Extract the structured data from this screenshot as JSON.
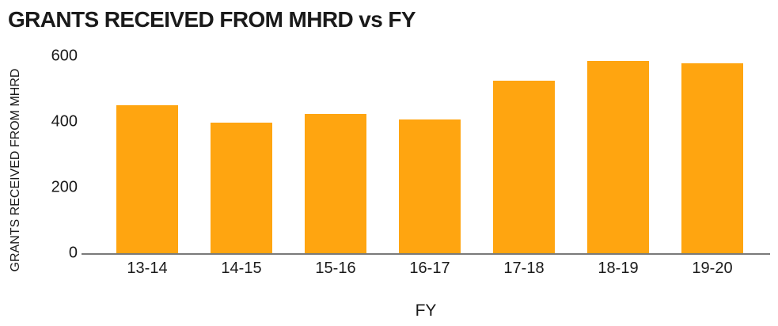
{
  "chart_data": {
    "type": "bar",
    "title": "GRANTS RECEIVED FROM MHRD vs FY",
    "xlabel": "FY",
    "ylabel": "GRANTS RECEIVED FROM MHRD",
    "categories": [
      "13-14",
      "14-15",
      "15-16",
      "16-17",
      "17-18",
      "18-19",
      "19-20"
    ],
    "values": [
      450,
      397,
      425,
      408,
      526,
      585,
      578
    ],
    "ylim": [
      0,
      600
    ],
    "yticks": [
      0,
      200,
      400,
      600
    ],
    "grid": false,
    "legend_position": "none",
    "bar_color": "#FFA510",
    "axis_color": "#7A7A7A",
    "text_color": "#1A1A1A",
    "background_color": "#FFFFFF"
  }
}
